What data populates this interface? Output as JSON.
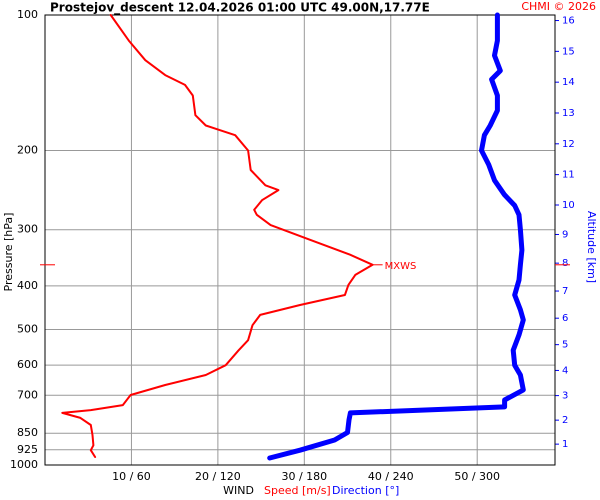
{
  "chart_data": {
    "type": "profile",
    "title": "Prostejov_descent  12.04.2026 01:00 UTC  49.00N,17.77E",
    "credit": "CHMI © 2026",
    "y_label": "Pressure [hPa]",
    "y2_label": "Altitude [km]",
    "x_label": "WIND",
    "annotation": "MXWS",
    "ylog": true,
    "grid": true,
    "ylim": [
      1000,
      100
    ],
    "yticks": [
      100,
      200,
      300,
      400,
      500,
      600,
      700,
      850,
      925,
      1000
    ],
    "y2ticks": [
      1,
      2,
      3,
      4,
      5,
      6,
      7,
      8,
      9,
      10,
      11,
      12,
      13,
      14,
      15,
      16
    ],
    "y2_color": "#0000ff",
    "xlim": [
      0,
      59
    ],
    "xticks": [
      {
        "value": 10,
        "label": "10 / 60"
      },
      {
        "value": 20,
        "label": "20 / 120"
      },
      {
        "value": 30,
        "label": "30 / 180"
      },
      {
        "value": 40,
        "label": "40 / 240"
      },
      {
        "value": 50,
        "label": "50 / 300"
      }
    ],
    "x2lim": [
      0,
      354
    ],
    "series": [
      {
        "name": "Speed [m/s]",
        "color": "#ff0000",
        "width": 2,
        "pressure": [
          100,
          114,
          126,
          136,
          143,
          151,
          167,
          176,
          185,
          200,
          221,
          239,
          245,
          258,
          271,
          278,
          293,
          316,
          341,
          359,
          378,
          398,
          419,
          441,
          464,
          489,
          528,
          556,
          600,
          631,
          664,
          699,
          736,
          755,
          766,
          786,
          815,
          858,
          904,
          927,
          960
        ],
        "values": [
          7.6,
          9.7,
          11.6,
          13.9,
          16.2,
          17.1,
          17.4,
          18.6,
          22.0,
          23.5,
          23.8,
          25.5,
          27.0,
          25.1,
          24.2,
          24.5,
          26.1,
          30.7,
          35.3,
          37.9,
          35.9,
          35.1,
          34.7,
          29.5,
          24.9,
          24.0,
          23.5,
          22.4,
          20.9,
          18.6,
          13.9,
          9.9,
          9.0,
          5.3,
          2.0,
          4.1,
          5.3,
          5.5,
          5.6,
          5.3,
          5.8
        ]
      },
      {
        "name": "Direction [°]",
        "color": "#0000ff",
        "width": 5,
        "axis": "x2",
        "pressure": [
          100,
          114,
          123,
          133,
          139,
          151,
          163,
          176,
          185,
          200,
          215,
          233,
          251,
          265,
          278,
          300,
          333,
          359,
          388,
          419,
          452,
          476,
          514,
          556,
          600,
          631,
          681,
          717,
          743,
          766,
          794,
          847,
          880,
          927,
          965
        ],
        "values": [
          314,
          314,
          312,
          316,
          310,
          314,
          314,
          309,
          305,
          303,
          308,
          312,
          319,
          326,
          329,
          330,
          331,
          330,
          329,
          326,
          330,
          332,
          329,
          325,
          326,
          330,
          332,
          319,
          319,
          212,
          211,
          210,
          201,
          177,
          156
        ]
      }
    ]
  }
}
